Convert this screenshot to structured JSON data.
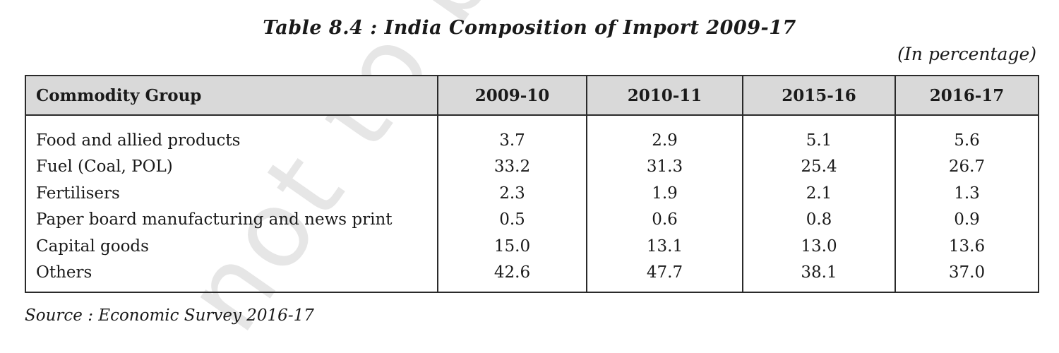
{
  "watermark": "not to be",
  "title": "Table 8.4 : India Composition of Import 2009-17",
  "unit_note": "(In percentage)",
  "table": {
    "headers": [
      "Commodity Group",
      "2009-10",
      "2010-11",
      "2015-16",
      "2016-17"
    ],
    "rows": [
      [
        "Food and allied products",
        "3.7",
        "2.9",
        "5.1",
        "5.6"
      ],
      [
        "Fuel (Coal, POL)",
        "33.2",
        "31.3",
        "25.4",
        "26.7"
      ],
      [
        "Fertilisers",
        "2.3",
        "1.9",
        "2.1",
        "1.3"
      ],
      [
        "Paper board manufacturing and news print",
        "0.5",
        "0.6",
        "0.8",
        "0.9"
      ],
      [
        "Capital goods",
        "15.0",
        "13.1",
        "13.0",
        "13.6"
      ],
      [
        "Others",
        "42.6",
        "47.7",
        "38.1",
        "37.0"
      ]
    ]
  },
  "source": "Source : Economic Survey 2016-17"
}
